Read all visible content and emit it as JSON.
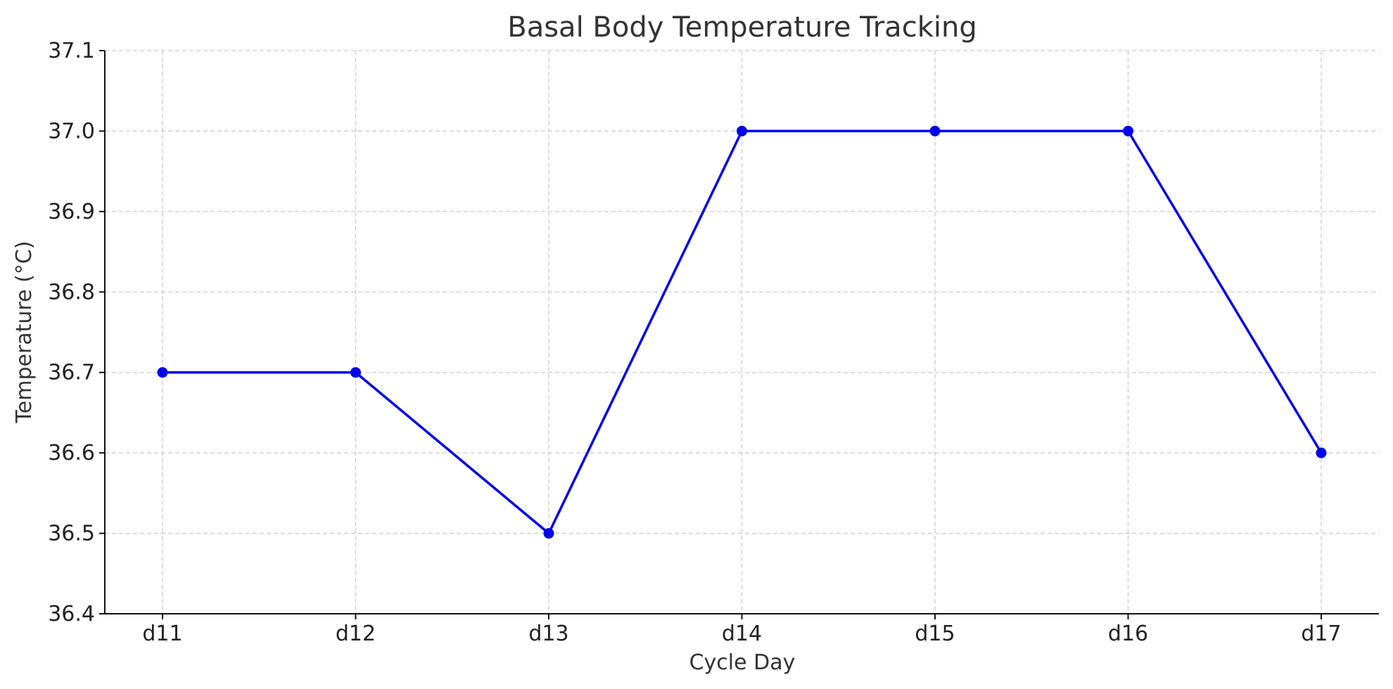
{
  "chart_data": {
    "type": "line",
    "title": "Basal Body Temperature Tracking",
    "xlabel": "Cycle Day",
    "ylabel": "Temperature (°C)",
    "categories": [
      "d11",
      "d12",
      "d13",
      "d14",
      "d15",
      "d16",
      "d17"
    ],
    "series": [
      {
        "values": [
          36.7,
          36.7,
          36.5,
          37.0,
          37.0,
          37.0,
          36.6
        ],
        "color": "#0000ee"
      }
    ],
    "ylim": [
      36.4,
      37.1
    ],
    "yticks": [
      "36.4",
      "36.5",
      "36.6",
      "36.7",
      "36.8",
      "36.9",
      "37.0",
      "37.1"
    ],
    "grid": true,
    "marker": "circle"
  }
}
